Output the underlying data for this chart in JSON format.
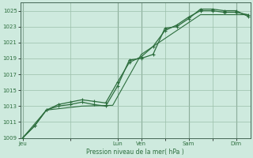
{
  "bg_color": "#ceeade",
  "plot_bg": "#ceeade",
  "grid_color": "#9bbfaa",
  "line_color": "#2d6e3e",
  "title_color": "#2d6e3e",
  "ylabel_text": "Pression niveau de la mer( hPa )",
  "ylim": [
    1009,
    1026
  ],
  "yticks": [
    1009,
    1011,
    1013,
    1015,
    1017,
    1019,
    1021,
    1023,
    1025
  ],
  "xtick_labels": [
    "Jeu",
    "",
    "Lun",
    "Ven",
    "",
    "Sam",
    "",
    "Dim"
  ],
  "xtick_positions": [
    0,
    2,
    4,
    5,
    6,
    7,
    8,
    9
  ],
  "xlim": [
    -0.1,
    9.6
  ],
  "vline_positions": [
    0,
    4,
    5,
    7,
    9
  ],
  "line1_x": [
    0.0,
    0.5,
    1.0,
    1.5,
    2.0,
    2.5,
    3.0,
    3.5,
    4.0,
    4.5,
    5.0,
    5.5,
    6.0,
    6.5,
    7.0,
    7.5,
    8.0,
    8.5,
    9.0,
    9.5
  ],
  "line1_y": [
    1009.0,
    1010.5,
    1012.5,
    1013.2,
    1013.5,
    1013.8,
    1013.6,
    1013.4,
    1016.0,
    1018.5,
    1019.2,
    1020.5,
    1022.5,
    1023.2,
    1024.2,
    1025.0,
    1025.0,
    1024.8,
    1024.8,
    1024.5
  ],
  "line2_x": [
    0.0,
    0.5,
    1.0,
    1.5,
    2.0,
    2.5,
    3.0,
    3.5,
    4.0,
    4.5,
    5.0,
    5.5,
    6.0,
    6.5,
    7.0,
    7.5,
    8.0,
    8.5,
    9.0,
    9.5
  ],
  "line2_y": [
    1009.0,
    1010.5,
    1012.5,
    1013.0,
    1013.2,
    1013.5,
    1013.2,
    1013.0,
    1015.5,
    1018.8,
    1019.0,
    1019.5,
    1022.8,
    1023.0,
    1024.0,
    1025.2,
    1025.2,
    1025.0,
    1025.0,
    1024.3
  ],
  "line3_x": [
    0.0,
    1.0,
    2.5,
    3.8,
    5.0,
    6.5,
    7.5,
    9.5
  ],
  "line3_y": [
    1009.0,
    1012.5,
    1013.0,
    1013.1,
    1019.5,
    1022.5,
    1024.5,
    1024.5
  ]
}
